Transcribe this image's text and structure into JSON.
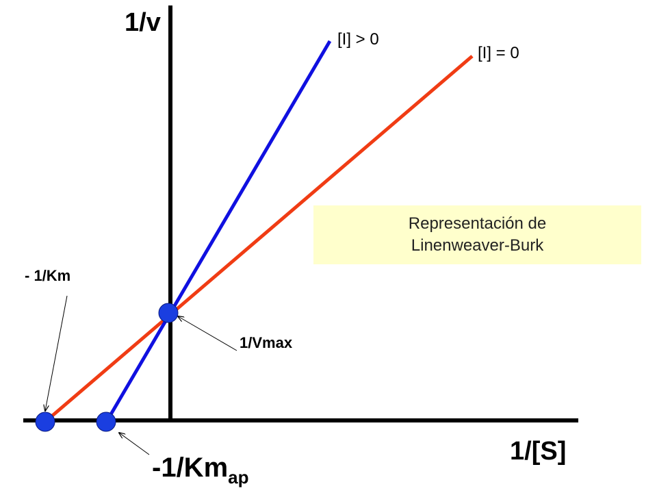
{
  "axes": {
    "y_label": "1/v",
    "x_label": "1/[S]"
  },
  "lines": [
    {
      "label": "[I] > 0",
      "color": "#1010e0"
    },
    {
      "label": "[I] = 0",
      "color": "#f03c14"
    }
  ],
  "annotations": {
    "neg_inv_km": "- 1/Km",
    "inv_vmax": "1/Vmax",
    "neg_inv_km_ap_main": "-1/Km",
    "neg_inv_km_ap_sub": "ap"
  },
  "note": {
    "line1": "Representación de",
    "line2": "Linenweaver-Burk"
  },
  "colors": {
    "axis": "#000000",
    "point": "#1a3ee0",
    "note_bg": "#ffffcc"
  }
}
